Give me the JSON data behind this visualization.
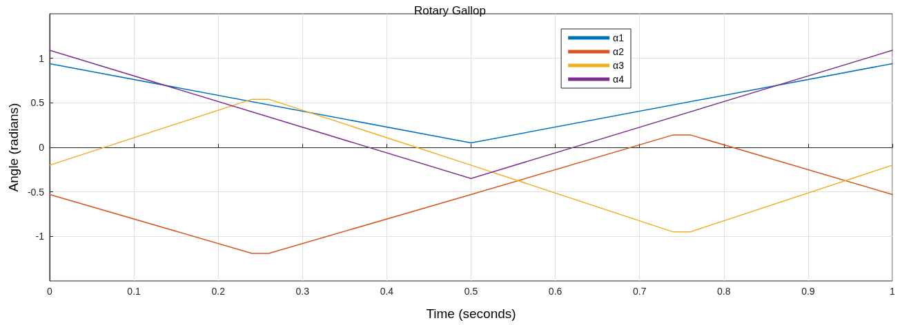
{
  "chart_data": {
    "type": "line",
    "title": "Rotary Gallop",
    "xlabel": "Time (seconds)",
    "ylabel": "Angle (radians)",
    "xlim": [
      0,
      1
    ],
    "xticks": [
      0,
      0.1,
      0.2,
      0.3,
      0.4,
      0.5,
      0.6,
      0.7,
      0.8,
      0.9,
      1
    ],
    "ylim": [
      -1.5,
      1.5
    ],
    "yticks": [
      -1,
      -0.5,
      0,
      0.5,
      1
    ],
    "grid": true,
    "legend": "top right",
    "marker": "none",
    "line_style": "solid",
    "series": [
      {
        "name": "α1",
        "color": "#0072bd",
        "x": [
          0,
          0.5,
          1
        ],
        "values": [
          0.94,
          0.05,
          0.94
        ]
      },
      {
        "name": "α2",
        "color": "#d95319",
        "x": [
          0,
          0.24,
          0.26,
          0.5,
          0.74,
          0.76,
          1
        ],
        "values": [
          -0.53,
          -1.19,
          -1.19,
          -0.53,
          0.14,
          0.14,
          -0.53
        ]
      },
      {
        "name": "α3",
        "color": "#edb120",
        "x": [
          0,
          0.24,
          0.26,
          0.5,
          0.74,
          0.76,
          1
        ],
        "values": [
          -0.2,
          0.54,
          0.54,
          -0.2,
          -0.95,
          -0.95,
          -0.2
        ]
      },
      {
        "name": "α4",
        "color": "#7e2f8e",
        "x": [
          0,
          0.5,
          1
        ],
        "values": [
          1.09,
          -0.35,
          1.09
        ]
      }
    ]
  }
}
